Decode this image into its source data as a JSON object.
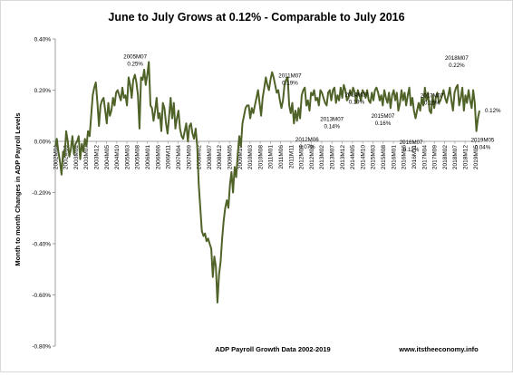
{
  "chart_data": {
    "type": "line",
    "title": "June to July Grows at 0.12% - Comparable to July 2016",
    "ylabel": "Month to month Changes in ADP Payroll Levels",
    "xlabel": "ADP Payroll Growth Data 2002-2019",
    "source": "www.itstheeconomy.info",
    "ylim": [
      -0.8,
      0.4
    ],
    "yticks": [
      0.4,
      0.2,
      0.0,
      -0.2,
      -0.4,
      -0.6,
      -0.8
    ],
    "ytick_labels": [
      "0.40%",
      "0.20%",
      "0.00%",
      "-0.20%",
      "-0.40%",
      "-0.60%",
      "-0.80%"
    ],
    "x_start": "2002M04",
    "x_end": "2019M07",
    "xtick_labels": [
      "2002M04",
      "2002M09",
      "2003M02",
      "2003M07",
      "2003M12",
      "2004M05",
      "2004M10",
      "2005M03",
      "2005M08",
      "2006M01",
      "2006M06",
      "2006M11",
      "2007M04",
      "2007M09",
      "2008M02",
      "2008M07",
      "2008M12",
      "2009M05",
      "2009M10",
      "2010M03",
      "2010M08",
      "2011M01",
      "2011M06",
      "2011M11",
      "2012M04",
      "2012M09",
      "2013M02",
      "2013M07",
      "2013M12",
      "2014M05",
      "2014M10",
      "2015M03",
      "2015M08",
      "2016M01",
      "2016M06",
      "2016M11",
      "2017M04",
      "2017M09",
      "2018M02",
      "2018M07",
      "2018M12",
      "2019M05"
    ],
    "series": [
      {
        "color": "#4f6228",
        "values": [
          -0.02,
          0.01,
          -0.04,
          -0.08,
          -0.13,
          -0.04,
          -0.06,
          0.04,
          0.0,
          -0.06,
          -0.03,
          0.02,
          -0.05,
          -0.01,
          0.0,
          0.02,
          -0.07,
          -0.01,
          -0.04,
          0.01,
          -0.02,
          0.04,
          0.02,
          0.1,
          0.18,
          0.21,
          0.23,
          0.15,
          0.06,
          0.14,
          0.16,
          0.17,
          0.12,
          0.07,
          0.15,
          0.1,
          0.12,
          0.17,
          0.14,
          0.19,
          0.2,
          0.18,
          0.16,
          0.21,
          0.17,
          0.18,
          0.14,
          0.25,
          0.22,
          0.17,
          0.24,
          0.26,
          0.23,
          0.18,
          0.05,
          0.25,
          0.24,
          0.28,
          0.22,
          0.26,
          0.31,
          0.14,
          0.13,
          0.08,
          0.12,
          0.17,
          0.09,
          0.11,
          0.04,
          0.15,
          0.13,
          0.07,
          0.03,
          0.1,
          0.17,
          0.09,
          0.15,
          0.05,
          0.09,
          0.12,
          0.05,
          0.02,
          0.01,
          0.04,
          0.07,
          0.0,
          0.06,
          0.07,
          0.03,
          0.01,
          0.05,
          -0.02,
          -0.17,
          -0.26,
          -0.35,
          -0.37,
          -0.36,
          -0.39,
          -0.38,
          -0.4,
          -0.42,
          -0.53,
          -0.45,
          -0.49,
          -0.63,
          -0.52,
          -0.47,
          -0.38,
          -0.31,
          -0.26,
          -0.23,
          -0.26,
          -0.17,
          -0.12,
          -0.2,
          -0.1,
          -0.14,
          -0.05,
          0.02,
          -0.02,
          0.07,
          0.1,
          0.13,
          0.14,
          0.14,
          0.09,
          0.13,
          0.11,
          0.14,
          0.17,
          0.2,
          0.15,
          0.1,
          0.17,
          0.21,
          0.25,
          0.22,
          0.2,
          0.24,
          0.27,
          0.25,
          0.22,
          0.19,
          0.2,
          0.16,
          0.13,
          0.16,
          0.22,
          0.24,
          0.25,
          0.14,
          0.11,
          0.15,
          0.07,
          0.12,
          0.08,
          0.13,
          0.09,
          0.18,
          0.2,
          0.21,
          0.14,
          0.16,
          0.12,
          0.19,
          0.18,
          0.2,
          0.16,
          0.17,
          0.14,
          0.2,
          0.19,
          0.17,
          0.15,
          0.14,
          0.19,
          0.2,
          0.16,
          0.2,
          0.21,
          0.15,
          0.18,
          0.16,
          0.21,
          0.17,
          0.22,
          0.2,
          0.16,
          0.17,
          0.2,
          0.18,
          0.21,
          0.19,
          0.15,
          0.2,
          0.18,
          0.16,
          0.2,
          0.19,
          0.17,
          0.2,
          0.16,
          0.15,
          0.19,
          0.16,
          0.2,
          0.21,
          0.19,
          0.16,
          0.18,
          0.14,
          0.2,
          0.17,
          0.15,
          0.19,
          0.13,
          0.18,
          0.2,
          0.16,
          0.19,
          0.12,
          0.15,
          0.2,
          0.16,
          0.19,
          0.14,
          0.18,
          0.21,
          0.14,
          0.17,
          0.12,
          0.09,
          0.12,
          0.15,
          0.12,
          0.17,
          0.14,
          0.21,
          0.16,
          0.19,
          0.12,
          0.11,
          0.18,
          0.13,
          0.17,
          0.19,
          0.15,
          0.16,
          0.18,
          0.2,
          0.17,
          0.15,
          0.18,
          0.21,
          0.16,
          0.12,
          0.19,
          0.21,
          0.22,
          0.14,
          0.17,
          0.21,
          0.12,
          0.18,
          0.15,
          0.2,
          0.16,
          0.13,
          0.2,
          0.15,
          0.04,
          0.09,
          0.12
        ]
      }
    ],
    "annotations": [
      {
        "x": "2005M07",
        "y": 0.25,
        "label1": "2005M07",
        "label2": "0.25%"
      },
      {
        "x": "2011M07",
        "y": 0.19,
        "label1": "2011M07",
        "label2": "0.19%"
      },
      {
        "x": "2012M06",
        "y": 0.07,
        "label1": "2012M06",
        "label2": "0.07%"
      },
      {
        "x": "2013M07",
        "y": 0.14,
        "label1": "2013M07",
        "label2": "0.14%"
      },
      {
        "x": "2014M07",
        "y": 0.19,
        "label1": "2014M07",
        "label2": "0.19%"
      },
      {
        "x": "2015M07",
        "y": 0.16,
        "label1": "2015M07",
        "label2": "0.16%"
      },
      {
        "x": "2016M07",
        "y": 0.12,
        "label1": "2016M07",
        "label2": "0.12%"
      },
      {
        "x": "2017M07",
        "y": 0.15,
        "label1": "2017M07",
        "label2": "0.15%"
      },
      {
        "x": "2018M07",
        "y": 0.22,
        "label1": "2018M07",
        "label2": "0.22%"
      },
      {
        "x": "2019M05",
        "y": 0.04,
        "label1": "2019M05",
        "label2": "0.04%"
      },
      {
        "x": "2019M07",
        "y": 0.12,
        "label1": "",
        "label2": "0.12%"
      }
    ],
    "grid": false,
    "legend": "none"
  }
}
